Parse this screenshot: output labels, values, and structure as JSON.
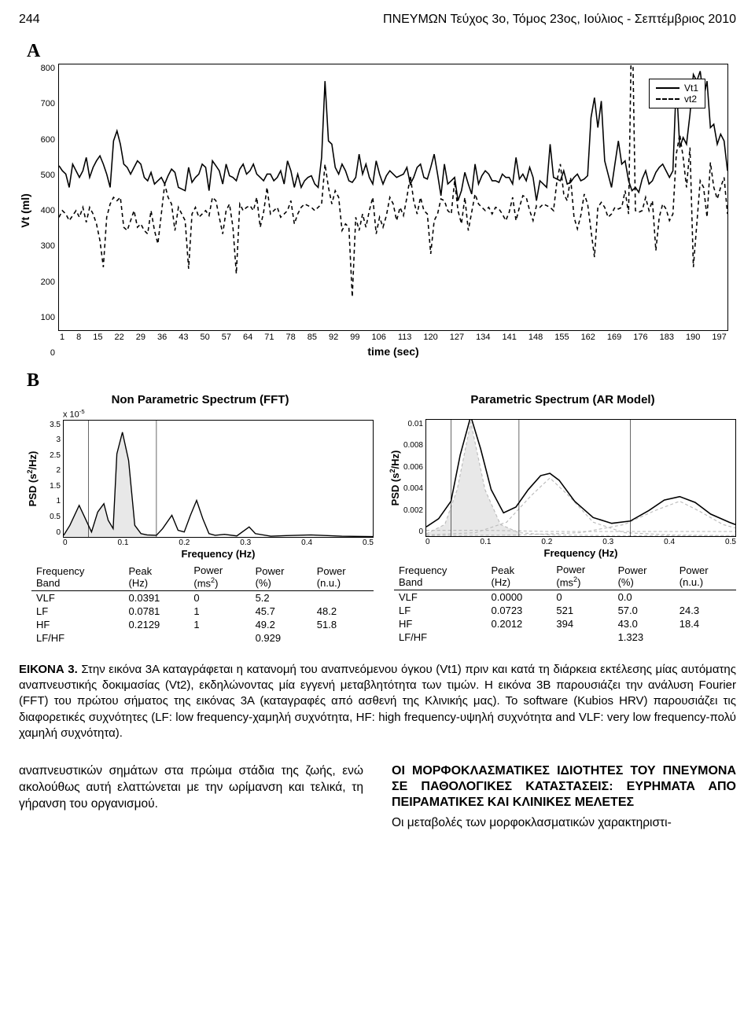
{
  "header": {
    "page_num": "244",
    "running": "ΠΝΕΥΜΩΝ Τεύχος 3ο, Τόμος 23ος, Ιούλιος - Σεπτέμβριος 2010"
  },
  "panelA": {
    "label": "A",
    "type": "line",
    "ylabel": "Vt (ml)",
    "xlabel": "time (sec)",
    "ylim": [
      0,
      800
    ],
    "yticks": [
      800,
      700,
      600,
      500,
      400,
      300,
      200,
      100,
      0
    ],
    "xticks": [
      1,
      8,
      15,
      22,
      29,
      36,
      43,
      50,
      57,
      64,
      71,
      78,
      85,
      92,
      99,
      106,
      113,
      120,
      127,
      134,
      141,
      148,
      155,
      162,
      169,
      176,
      183,
      190,
      197
    ],
    "legend": [
      "Vt1",
      "vt2"
    ],
    "colors": {
      "vt1": "#000000",
      "vt2": "#000000",
      "background": "#ffffff"
    },
    "line_width": 1.6,
    "dash_pattern_vt2": "5,4",
    "vt1": [
      495,
      480,
      470,
      430,
      500,
      480,
      460,
      480,
      520,
      460,
      490,
      510,
      525,
      500,
      470,
      430,
      570,
      600,
      560,
      500,
      490,
      470,
      490,
      510,
      500,
      460,
      450,
      475,
      440,
      450,
      460,
      440,
      465,
      485,
      475,
      430,
      425,
      420,
      490,
      445,
      460,
      470,
      500,
      490,
      420,
      510,
      495,
      480,
      440,
      500,
      465,
      460,
      450,
      485,
      500,
      470,
      480,
      500,
      470,
      460,
      450,
      470,
      470,
      450,
      460,
      480,
      440,
      510,
      480,
      430,
      470,
      430,
      450,
      460,
      465,
      440,
      430,
      520,
      750,
      570,
      560,
      490,
      470,
      500,
      480,
      450,
      445,
      460,
      530,
      470,
      500,
      460,
      440,
      510,
      470,
      440,
      465,
      480,
      470,
      460,
      465,
      470,
      490,
      440,
      460,
      490,
      500,
      460,
      455,
      490,
      530,
      470,
      405,
      500,
      440,
      450,
      460,
      390,
      420,
      475,
      440,
      410,
      500,
      440,
      465,
      480,
      470,
      450,
      450,
      445,
      470,
      460,
      460,
      440,
      520,
      455,
      470,
      450,
      490,
      460,
      390,
      450,
      440,
      430,
      560,
      460,
      455,
      450,
      480,
      440,
      445,
      460,
      470,
      450,
      455,
      465,
      640,
      700,
      610,
      690,
      510,
      470,
      430,
      500,
      570,
      500,
      510,
      450,
      420,
      430,
      415,
      455,
      480,
      440,
      450,
      475,
      490,
      500,
      480,
      460,
      480,
      750,
      550,
      580,
      560,
      650,
      770,
      750,
      780,
      700,
      750,
      610,
      620,
      560,
      590,
      570,
      480
    ],
    "vt2": [
      340,
      360,
      350,
      330,
      345,
      360,
      340,
      370,
      325,
      370,
      350,
      320,
      270,
      190,
      340,
      380,
      400,
      390,
      400,
      310,
      300,
      330,
      360,
      310,
      320,
      300,
      290,
      360,
      300,
      260,
      350,
      440,
      400,
      380,
      300,
      370,
      350,
      330,
      185,
      350,
      370,
      340,
      350,
      360,
      345,
      400,
      390,
      340,
      290,
      360,
      380,
      310,
      170,
      380,
      360,
      370,
      375,
      360,
      400,
      310,
      355,
      430,
      350,
      360,
      370,
      340,
      350,
      360,
      390,
      320,
      350,
      370,
      380,
      375,
      370,
      360,
      370,
      380,
      500,
      430,
      380,
      420,
      400,
      300,
      320,
      310,
      100,
      340,
      300,
      350,
      310,
      360,
      400,
      290,
      340,
      310,
      345,
      400,
      380,
      330,
      370,
      345,
      400,
      465,
      390,
      350,
      400,
      360,
      350,
      230,
      330,
      350,
      395,
      390,
      360,
      350,
      450,
      360,
      320,
      400,
      300,
      355,
      410,
      380,
      370,
      360,
      370,
      350,
      370,
      365,
      350,
      330,
      355,
      400,
      330,
      370,
      405,
      400,
      360,
      330,
      375,
      370,
      380,
      375,
      370,
      360,
      450,
      500,
      410,
      390,
      460,
      340,
      305,
      345,
      410,
      380,
      300,
      220,
      370,
      385,
      370,
      340,
      350,
      370,
      365,
      370,
      420,
      350,
      990,
      360,
      355,
      360,
      400,
      360,
      390,
      240,
      340,
      380,
      365,
      330,
      350,
      530,
      590,
      520,
      430,
      550,
      190,
      320,
      450,
      430,
      340,
      505,
      430,
      395,
      430,
      460,
      350
    ]
  },
  "panelB": {
    "label": "B",
    "left": {
      "title": "Non Parametric Spectrum (FFT)",
      "type": "line",
      "ylabel_html": "PSD (s<sup>2</sup>/Hz)",
      "y_exp": "x 10<sup>-5</sup>",
      "ylim": [
        0,
        3.5
      ],
      "yticks": [
        3.5,
        3,
        2.5,
        2,
        1.5,
        1,
        0.5,
        0
      ],
      "xlim": [
        0,
        0.5
      ],
      "xticks": [
        0,
        0.1,
        0.2,
        0.3,
        0.4,
        0.5
      ],
      "xlabel": "Frequency (Hz)",
      "line_color": "#000000",
      "fill_color": "#e8e8e8",
      "vbands": [
        0.04,
        0.15
      ],
      "curve": [
        [
          0,
          0.05
        ],
        [
          0.01,
          0.35
        ],
        [
          0.025,
          0.95
        ],
        [
          0.035,
          0.55
        ],
        [
          0.045,
          0.15
        ],
        [
          0.055,
          0.75
        ],
        [
          0.065,
          1.0
        ],
        [
          0.072,
          0.5
        ],
        [
          0.08,
          0.25
        ],
        [
          0.086,
          2.5
        ],
        [
          0.095,
          3.15
        ],
        [
          0.105,
          2.3
        ],
        [
          0.115,
          0.35
        ],
        [
          0.125,
          0.1
        ],
        [
          0.135,
          0.06
        ],
        [
          0.15,
          0.05
        ],
        [
          0.16,
          0.25
        ],
        [
          0.175,
          0.65
        ],
        [
          0.185,
          0.2
        ],
        [
          0.195,
          0.15
        ],
        [
          0.205,
          0.65
        ],
        [
          0.215,
          1.1
        ],
        [
          0.225,
          0.55
        ],
        [
          0.235,
          0.1
        ],
        [
          0.245,
          0.05
        ],
        [
          0.26,
          0.08
        ],
        [
          0.28,
          0.03
        ],
        [
          0.3,
          0.3
        ],
        [
          0.31,
          0.1
        ],
        [
          0.335,
          0.02
        ],
        [
          0.36,
          0.04
        ],
        [
          0.4,
          0.06
        ],
        [
          0.45,
          0.02
        ],
        [
          0.5,
          0.01
        ]
      ]
    },
    "right": {
      "title": "Parametric Spectrum (AR Model)",
      "type": "line",
      "ylabel_html": "PSD (s<sup>2</sup>/Hz)",
      "ylim": [
        0,
        0.01
      ],
      "yticks": [
        "0.01",
        "0.008",
        "0.006",
        "0.004",
        "0.002",
        "0"
      ],
      "xlim": [
        0,
        0.5
      ],
      "xticks": [
        0,
        0.1,
        0.2,
        0.3,
        0.4,
        0.5
      ],
      "xlabel": "Frequency (Hz)",
      "black_color": "#000000",
      "dash_color": "#bdbdbd",
      "fill_color": "#e8e8e8",
      "vlines": [
        0.04,
        0.15,
        0.33
      ],
      "curve_black": [
        [
          0,
          0.0008
        ],
        [
          0.02,
          0.0015
        ],
        [
          0.04,
          0.003
        ],
        [
          0.055,
          0.007
        ],
        [
          0.072,
          0.0103
        ],
        [
          0.088,
          0.0075
        ],
        [
          0.105,
          0.004
        ],
        [
          0.125,
          0.002
        ],
        [
          0.145,
          0.0025
        ],
        [
          0.165,
          0.004
        ],
        [
          0.185,
          0.0052
        ],
        [
          0.2,
          0.0054
        ],
        [
          0.215,
          0.0048
        ],
        [
          0.24,
          0.003
        ],
        [
          0.27,
          0.0016
        ],
        [
          0.3,
          0.0011
        ],
        [
          0.33,
          0.0013
        ],
        [
          0.36,
          0.0022
        ],
        [
          0.385,
          0.0031
        ],
        [
          0.41,
          0.0034
        ],
        [
          0.435,
          0.0029
        ],
        [
          0.46,
          0.0019
        ],
        [
          0.49,
          0.0012
        ],
        [
          0.5,
          0.001
        ]
      ],
      "dash1": [
        [
          0,
          0.0002
        ],
        [
          0.03,
          0.001
        ],
        [
          0.05,
          0.004
        ],
        [
          0.072,
          0.0098
        ],
        [
          0.095,
          0.004
        ],
        [
          0.12,
          0.001
        ],
        [
          0.15,
          0.0003
        ],
        [
          0.2,
          0.0001
        ],
        [
          0.3,
          5e-05
        ],
        [
          0.5,
          3e-05
        ]
      ],
      "dash2": [
        [
          0,
          0.0001
        ],
        [
          0.08,
          0.0003
        ],
        [
          0.13,
          0.0012
        ],
        [
          0.17,
          0.0035
        ],
        [
          0.2,
          0.005
        ],
        [
          0.23,
          0.0035
        ],
        [
          0.27,
          0.0012
        ],
        [
          0.32,
          0.0003
        ],
        [
          0.4,
          0.0001
        ],
        [
          0.5,
          5e-05
        ]
      ],
      "dash3": [
        [
          0,
          5e-05
        ],
        [
          0.15,
          0.0001
        ],
        [
          0.25,
          0.0003
        ],
        [
          0.32,
          0.001
        ],
        [
          0.37,
          0.0022
        ],
        [
          0.41,
          0.003
        ],
        [
          0.44,
          0.0022
        ],
        [
          0.48,
          0.001
        ],
        [
          0.5,
          0.0007
        ]
      ],
      "dash4": [
        [
          0,
          0.0005
        ],
        [
          0.05,
          0.0005
        ],
        [
          0.1,
          0.0005
        ],
        [
          0.2,
          0.0004
        ],
        [
          0.3,
          0.0004
        ],
        [
          0.4,
          0.0004
        ],
        [
          0.5,
          0.0004
        ]
      ]
    }
  },
  "tableLeft": {
    "columns": [
      {
        "l1": "Frequency",
        "l2": "Band"
      },
      {
        "l1": "Peak",
        "l2": "(Hz)"
      },
      {
        "l1": "Power",
        "l2": "(ms<sup>2</sup>)"
      },
      {
        "l1": "Power",
        "l2": "(%)"
      },
      {
        "l1": "Power",
        "l2": "(n.u.)"
      }
    ],
    "rows": [
      [
        "VLF",
        "0.0391",
        "0",
        "5.2",
        ""
      ],
      [
        "LF",
        "0.0781",
        "1",
        "45.7",
        "48.2"
      ],
      [
        "HF",
        "0.2129",
        "1",
        "49.2",
        "51.8"
      ],
      [
        "LF/HF",
        "",
        "",
        "0.929",
        ""
      ]
    ]
  },
  "tableRight": {
    "columns": [
      {
        "l1": "Frequency",
        "l2": "Band"
      },
      {
        "l1": "Peak",
        "l2": "(Hz)"
      },
      {
        "l1": "Power",
        "l2": "(ms<sup>2</sup>)"
      },
      {
        "l1": "Power",
        "l2": "(%)"
      },
      {
        "l1": "Power",
        "l2": "(n.u.)"
      }
    ],
    "rows": [
      [
        "VLF",
        "0.0000",
        "0",
        "0.0",
        ""
      ],
      [
        "LF",
        "0.0723",
        "521",
        "57.0",
        "24.3"
      ],
      [
        "HF",
        "0.2012",
        "394",
        "43.0",
        "18.4"
      ],
      [
        "LF/HF",
        "",
        "",
        "1.323",
        ""
      ]
    ]
  },
  "caption": {
    "lead": "ΕΙΚΟΝΑ 3.",
    "text": " Στην εικόνα 3Α καταγράφεται η κατανομή του αναπνεόμενου όγκου (Vt1) πριν και κατά τη διάρκεια εκτέλεσης μίας αυτόματης αναπνευστικής δοκιμασίας (Vt2), εκδηλώνοντας μία εγγενή μεταβλητότητα των τιμών. Η εικόνα 3Β παρουσιάζει την ανάλυση Fourier (FFT) του πρώτου σήματος της εικόνας 3Α (καταγραφές από ασθενή της Κλινικής μας). Το software (Kubios HRV) παρουσιάζει τις διαφορετικές συχνότητες (LF: low frequency-χαμηλή συχνότητα, HF: high frequency-υψηλή συχνότητα and VLF: very low frequency-πολύ χαμηλή συχνότητα)."
  },
  "body": {
    "left_para": "αναπνευστικών σημάτων στα πρώιμα στάδια της ζωής, ενώ ακολούθως αυτή ελαττώνεται με την ωρίμανση και τελικά, τη γήρανση του οργανισμού.",
    "right_title": "ΟΙ ΜΟΡΦΟΚΛΑΣΜΑΤΙΚΕΣ ΙΔΙΟΤΗΤΕΣ ΤΟΥ ΠΝΕΥΜΟΝΑ ΣΕ ΠΑΘΟΛΟΓΙΚΕΣ ΚΑΤΑΣΤΑΣΕΙΣ: ΕΥΡΗΜΑΤΑ ΑΠΟ ΠΕΙΡΑΜΑΤΙΚΕΣ ΚΑΙ ΚΛΙΝΙΚΕΣ ΜΕΛΕΤΕΣ",
    "right_para": "Οι μεταβολές των μορφοκλασματικών χαρακτηριστι-"
  }
}
